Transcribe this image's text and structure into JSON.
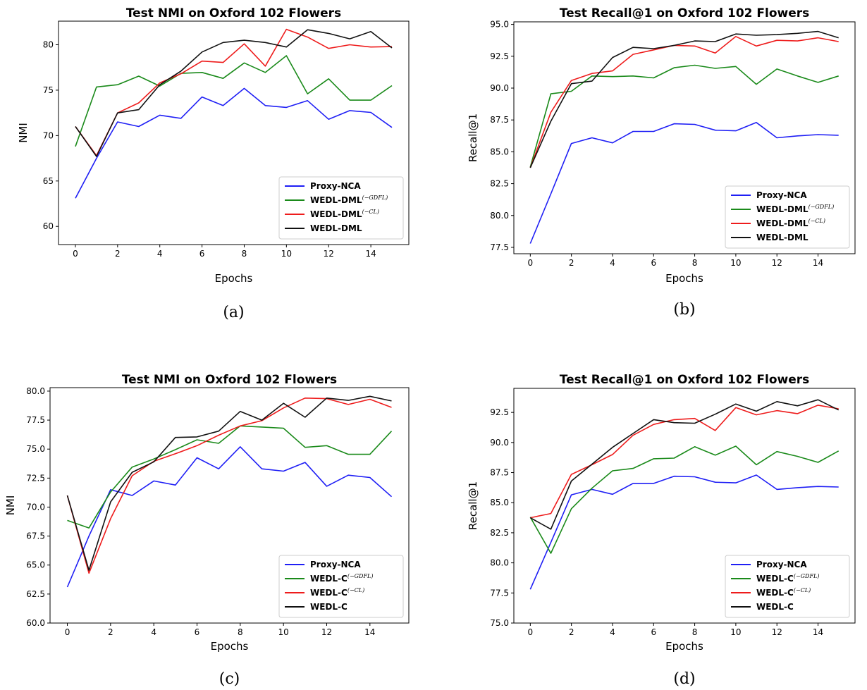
{
  "chart_data": [
    {
      "type": "line",
      "title": "Test NMI on Oxford 102 Flowers",
      "caption": "(a)",
      "xlabel": "Epochs",
      "ylabel": "NMI",
      "xlim": [
        -0.8,
        15.8
      ],
      "ylim": [
        58,
        82.6
      ],
      "xticks": [
        0,
        2,
        4,
        6,
        8,
        10,
        12,
        14
      ],
      "yticks": [
        60,
        65,
        70,
        75,
        80
      ],
      "ytick_labels": [
        "60",
        "65",
        "70",
        "75",
        "80"
      ],
      "legend_position": "lower-right",
      "x": [
        0,
        1,
        2,
        3,
        4,
        5,
        6,
        7,
        8,
        9,
        10,
        11,
        12,
        13,
        14,
        15
      ],
      "series": [
        {
          "name": "Proxy-NCA",
          "sup": "",
          "color": "#1f1ff5",
          "values": [
            63.1,
            67.5,
            71.5,
            71.0,
            72.25,
            71.9,
            74.25,
            73.3,
            75.2,
            73.3,
            73.1,
            73.85,
            71.8,
            72.75,
            72.55,
            70.9
          ]
        },
        {
          "name": "WEDL-DML",
          "sup": "(−GDFL)",
          "color": "#1a8a1a",
          "values": [
            68.8,
            75.35,
            75.6,
            76.55,
            75.45,
            76.85,
            76.95,
            76.3,
            78.0,
            76.95,
            78.8,
            74.6,
            76.25,
            73.9,
            73.9,
            75.5
          ]
        },
        {
          "name": "WEDL-DML",
          "sup": "(−CL)",
          "color": "#ee1c1c",
          "values": [
            71.0,
            67.8,
            72.5,
            73.6,
            75.8,
            76.8,
            78.2,
            78.05,
            80.1,
            77.65,
            81.7,
            80.85,
            79.6,
            80.0,
            79.75,
            79.8
          ]
        },
        {
          "name": "WEDL-DML",
          "sup": "",
          "color": "#111111",
          "values": [
            71.0,
            67.7,
            72.5,
            72.85,
            75.6,
            77.1,
            79.2,
            80.25,
            80.5,
            80.25,
            79.75,
            81.65,
            81.25,
            80.65,
            81.45,
            79.65
          ]
        }
      ]
    },
    {
      "type": "line",
      "title": "Test Recall@1 on Oxford 102 Flowers",
      "caption": "(b)",
      "xlabel": "Epochs",
      "ylabel": "Recall@1",
      "xlim": [
        -0.8,
        15.8
      ],
      "ylim": [
        77.0,
        95.2
      ],
      "xticks": [
        0,
        2,
        4,
        6,
        8,
        10,
        12,
        14
      ],
      "yticks": [
        77.5,
        80.0,
        82.5,
        85.0,
        87.5,
        90.0,
        92.5,
        95.0
      ],
      "ytick_labels": [
        "77.5",
        "80.0",
        "82.5",
        "85.0",
        "87.5",
        "90.0",
        "92.5",
        "95.0"
      ],
      "legend_position": "lower-right",
      "x": [
        0,
        1,
        2,
        3,
        4,
        5,
        6,
        7,
        8,
        9,
        10,
        11,
        12,
        13,
        14,
        15
      ],
      "series": [
        {
          "name": "Proxy-NCA",
          "sup": "",
          "color": "#1f1ff5",
          "values": [
            77.8,
            81.7,
            85.65,
            86.1,
            85.7,
            86.6,
            86.6,
            87.2,
            87.15,
            86.7,
            86.65,
            87.3,
            86.1,
            86.25,
            86.35,
            86.3
          ]
        },
        {
          "name": "WEDL-DML",
          "sup": "(−GDFL)",
          "color": "#1a8a1a",
          "values": [
            83.8,
            89.55,
            89.75,
            90.95,
            90.9,
            90.95,
            90.8,
            91.6,
            91.8,
            91.55,
            91.7,
            90.3,
            91.5,
            90.95,
            90.45,
            90.95
          ]
        },
        {
          "name": "WEDL-DML",
          "sup": "(−CL)",
          "color": "#ee1c1c",
          "values": [
            83.75,
            88.1,
            90.6,
            91.15,
            91.35,
            92.65,
            93.0,
            93.35,
            93.3,
            92.75,
            94.05,
            93.3,
            93.75,
            93.7,
            93.95,
            93.65
          ]
        },
        {
          "name": "WEDL-DML",
          "sup": "",
          "color": "#111111",
          "values": [
            83.75,
            87.4,
            90.35,
            90.55,
            92.4,
            93.2,
            93.1,
            93.35,
            93.7,
            93.65,
            94.25,
            94.15,
            94.2,
            94.3,
            94.45,
            93.95
          ]
        }
      ]
    },
    {
      "type": "line",
      "title": "Test NMI on Oxford 102 Flowers",
      "caption": "(c)",
      "xlabel": "Epochs",
      "ylabel": "NMI",
      "xlim": [
        -0.8,
        15.8
      ],
      "ylim": [
        60.0,
        80.3
      ],
      "xticks": [
        0,
        2,
        4,
        6,
        8,
        10,
        12,
        14
      ],
      "yticks": [
        60.0,
        62.5,
        65.0,
        67.5,
        70.0,
        72.5,
        75.0,
        77.5,
        80.0
      ],
      "ytick_labels": [
        "60.0",
        "62.5",
        "65.0",
        "67.5",
        "70.0",
        "72.5",
        "75.0",
        "77.5",
        "80.0"
      ],
      "legend_position": "lower-right",
      "x": [
        0,
        1,
        2,
        3,
        4,
        5,
        6,
        7,
        8,
        9,
        10,
        11,
        12,
        13,
        14,
        15
      ],
      "series": [
        {
          "name": "Proxy-NCA",
          "sup": "",
          "color": "#1f1ff5",
          "values": [
            63.1,
            67.5,
            71.5,
            71.0,
            72.25,
            71.9,
            74.25,
            73.3,
            75.2,
            73.3,
            73.1,
            73.85,
            71.8,
            72.75,
            72.55,
            70.9
          ]
        },
        {
          "name": "WEDL-C",
          "sup": "(−GDFL)",
          "color": "#1a8a1a",
          "values": [
            68.85,
            68.2,
            71.3,
            73.45,
            74.15,
            74.95,
            75.8,
            75.5,
            77.0,
            76.9,
            76.8,
            75.15,
            75.3,
            74.55,
            74.55,
            76.55
          ]
        },
        {
          "name": "WEDL-C",
          "sup": "(−CL)",
          "color": "#ee1c1c",
          "values": [
            71.0,
            64.3,
            69.0,
            72.7,
            73.95,
            74.6,
            75.3,
            76.2,
            77.0,
            77.45,
            78.55,
            79.4,
            79.35,
            78.85,
            79.3,
            78.6
          ]
        },
        {
          "name": "WEDL-C",
          "sup": "",
          "color": "#111111",
          "values": [
            71.0,
            64.55,
            70.45,
            73.0,
            73.9,
            76.0,
            76.05,
            76.55,
            78.25,
            77.5,
            78.95,
            77.75,
            79.4,
            79.2,
            79.55,
            79.15
          ]
        }
      ]
    },
    {
      "type": "line",
      "title": "Test Recall@1 on Oxford 102 Flowers",
      "caption": "(d)",
      "xlabel": "Epochs",
      "ylabel": "Recall@1",
      "xlim": [
        -0.8,
        15.8
      ],
      "ylim": [
        75.0,
        94.5
      ],
      "xticks": [
        0,
        2,
        4,
        6,
        8,
        10,
        12,
        14
      ],
      "yticks": [
        75.0,
        77.5,
        80.0,
        82.5,
        85.0,
        87.5,
        90.0,
        92.5
      ],
      "ytick_labels": [
        "75.0",
        "77.5",
        "80.0",
        "82.5",
        "85.0",
        "87.5",
        "90.0",
        "92.5"
      ],
      "legend_position": "lower-right",
      "x": [
        0,
        1,
        2,
        3,
        4,
        5,
        6,
        7,
        8,
        9,
        10,
        11,
        12,
        13,
        14,
        15
      ],
      "series": [
        {
          "name": "Proxy-NCA",
          "sup": "",
          "color": "#1f1ff5",
          "values": [
            77.8,
            81.7,
            85.65,
            86.1,
            85.7,
            86.6,
            86.6,
            87.2,
            87.15,
            86.7,
            86.65,
            87.3,
            86.1,
            86.25,
            86.35,
            86.3
          ]
        },
        {
          "name": "WEDL-C",
          "sup": "(−GDFL)",
          "color": "#1a8a1a",
          "values": [
            83.8,
            80.8,
            84.5,
            86.2,
            87.65,
            87.85,
            88.65,
            88.7,
            89.65,
            88.95,
            89.7,
            88.15,
            89.25,
            88.85,
            88.35,
            89.3
          ]
        },
        {
          "name": "WEDL-C",
          "sup": "(−CL)",
          "color": "#ee1c1c",
          "values": [
            83.75,
            84.1,
            87.35,
            88.15,
            89.0,
            90.6,
            91.5,
            91.9,
            92.0,
            91.0,
            92.9,
            92.3,
            92.65,
            92.4,
            93.1,
            92.8
          ]
        },
        {
          "name": "WEDL-C",
          "sup": "",
          "color": "#111111",
          "values": [
            83.75,
            82.8,
            86.8,
            88.2,
            89.6,
            90.75,
            91.9,
            91.65,
            91.6,
            92.35,
            93.2,
            92.6,
            93.4,
            93.05,
            93.55,
            92.7
          ]
        }
      ]
    }
  ]
}
